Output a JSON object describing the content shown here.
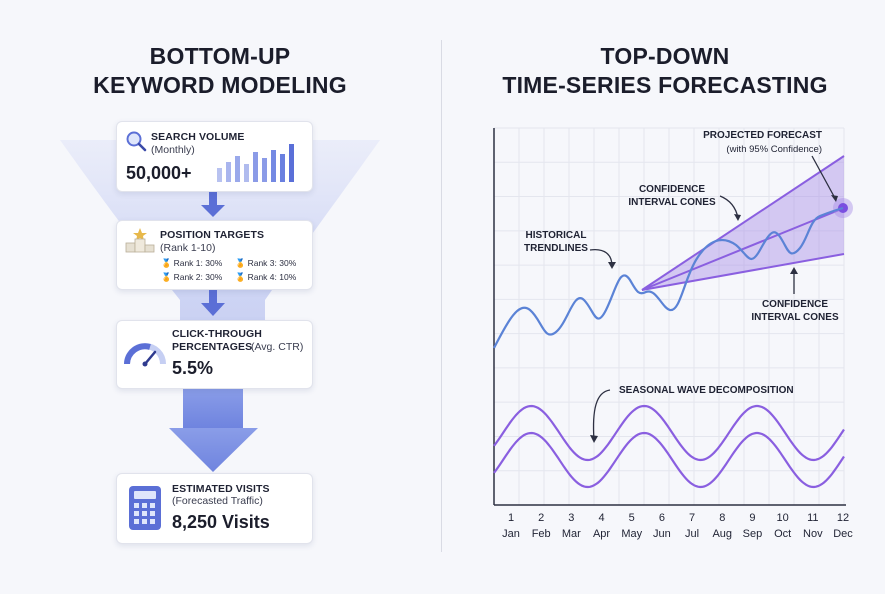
{
  "left": {
    "title_line1": "BOTTOM-UP",
    "title_line2": "KEYWORD MODELING",
    "cards": {
      "search": {
        "title": "SEARCH VOLUME",
        "sub": "(Monthly)",
        "value": "50,000+"
      },
      "position": {
        "title": "POSITION TARGETS",
        "sub": "(Rank 1-10)",
        "ranks": [
          "Rank 1: 30%",
          "Rank 3: 30%",
          "Rank 2: 30%",
          "Rank 4: 10%"
        ]
      },
      "ctr": {
        "title_line1": "CLICK-THROUGH",
        "title_line2": "PERCENTAGES",
        "sub": "(Avg. CTR)",
        "value": "5.5%"
      },
      "visits": {
        "title": "ESTIMATED VISITS",
        "sub": "(Forecasted Traffic)",
        "value": "8,250 Visits"
      }
    },
    "colors": {
      "accent": "#5b6fd6",
      "funnel": "#c9d0f3"
    }
  },
  "right": {
    "title_line1": "TOP-DOWN",
    "title_line2": "TIME-SERIES FORECASTING"
  },
  "chart_data": {
    "type": "line",
    "x_numbers": [
      "1",
      "2",
      "3",
      "4",
      "5",
      "6",
      "7",
      "8",
      "9",
      "10",
      "11",
      "12"
    ],
    "x_months": [
      "Jan",
      "Feb",
      "Mar",
      "Apr",
      "May",
      "Jun",
      "Jul",
      "Aug",
      "Sep",
      "Oct",
      "Nov",
      "Dec"
    ],
    "grid": true,
    "annotations": {
      "projected": "PROJECTED FORECAST",
      "projected_sub": "(with 95% Confidence)",
      "conf_top_1": "CONFIDENCE",
      "conf_top_2": "INTERVAL CONES",
      "hist_1": "HISTORICAL",
      "hist_2": "TRENDLINES",
      "conf_bot_1": "CONFIDENCE",
      "conf_bot_2": "INTERVAL CONES",
      "seasonal": "SEASONAL WAVE DECOMPOSITION"
    },
    "colors": {
      "trend": "#5b83d6",
      "cone": "#9b7ce0",
      "wave": "#8a5fe0"
    }
  }
}
